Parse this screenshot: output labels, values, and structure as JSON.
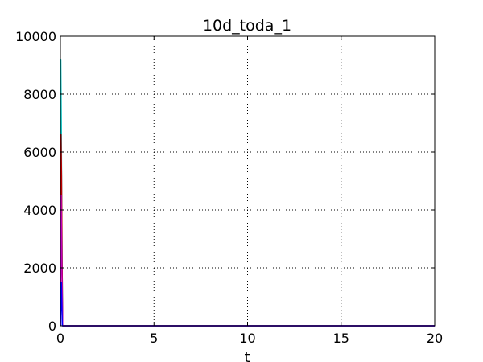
{
  "chart_data": {
    "type": "line",
    "title": "10d_toda_1",
    "xlabel": "t",
    "ylabel": "",
    "xlim": [
      0,
      20
    ],
    "ylim": [
      0,
      10000
    ],
    "xticks": [
      0,
      5,
      10,
      15,
      20
    ],
    "xtick_labels": [
      "0",
      "5",
      "10",
      "15",
      "20"
    ],
    "yticks": [
      0,
      2000,
      4000,
      6000,
      8000,
      10000
    ],
    "ytick_labels": [
      "0",
      "2000",
      "4000",
      "6000",
      "8000",
      "10000"
    ],
    "grid": true,
    "legend": "none",
    "series": [
      {
        "color": "#00bfbf",
        "x": [
          0,
          0.02,
          0.05,
          0.08,
          0.12,
          20
        ],
        "y": [
          0,
          9200,
          6700,
          3000,
          0,
          0
        ]
      },
      {
        "color": "#bf0000",
        "x": [
          0,
          0.03,
          0.06,
          0.09,
          0.12,
          20
        ],
        "y": [
          0,
          6600,
          5200,
          2200,
          0,
          0
        ]
      },
      {
        "color": "#bf00bf",
        "x": [
          0,
          0.04,
          0.08,
          0.12,
          20
        ],
        "y": [
          0,
          4500,
          1800,
          0,
          0
        ]
      },
      {
        "color": "#0000ff",
        "x": [
          0,
          0.05,
          0.1,
          20
        ],
        "y": [
          0,
          1500,
          0,
          0
        ]
      }
    ]
  }
}
